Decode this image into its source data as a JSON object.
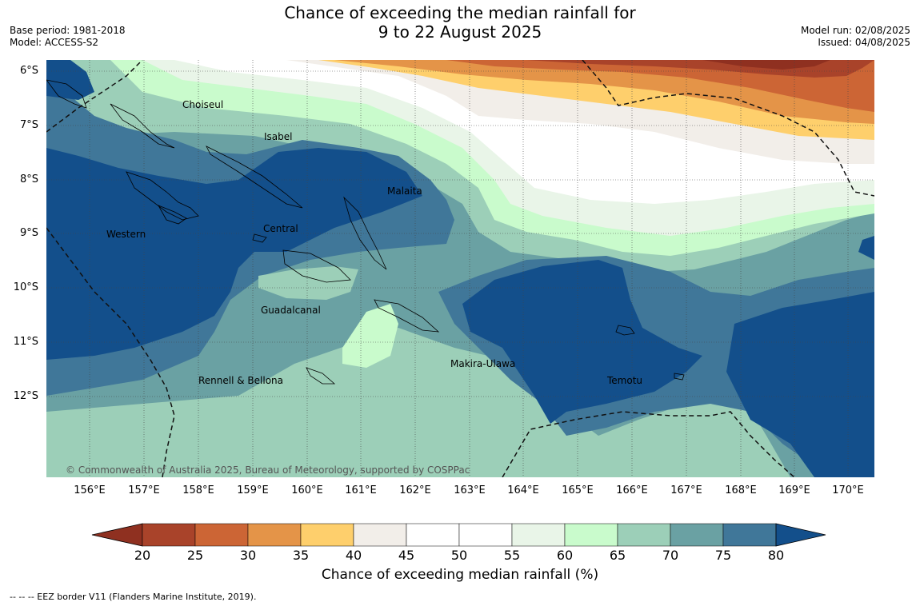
{
  "header": {
    "title_line1": "Chance of exceeding the median rainfall for",
    "title_line2": "9 to 22 August 2025",
    "base_period": "Base period: 1981-2018",
    "model": "Model: ACCESS-S2",
    "model_run": "Model run: 02/08/2025",
    "issued": "Issued: 04/08/2025"
  },
  "map": {
    "lat_labels": [
      "6°S",
      "7°S",
      "8°S",
      "9°S",
      "10°S",
      "11°S",
      "12°S"
    ],
    "lon_labels": [
      "156°E",
      "157°E",
      "158°E",
      "159°E",
      "160°E",
      "161°E",
      "162°E",
      "163°E",
      "164°E",
      "165°E",
      "166°E",
      "167°E",
      "168°E",
      "169°E",
      "170°E"
    ],
    "regions": {
      "choiseul": "Choiseul",
      "isabel": "Isabel",
      "malaita": "Malaita",
      "western": "Western",
      "central": "Central",
      "guadalcanal": "Guadalcanal",
      "makira": "Makira-Ulawa",
      "temotu": "Temotu",
      "rennell": "Rennell & Bellona"
    },
    "copyright": "© Commonwealth of Australia 2025, Bureau of Meteorology, supported by COSPPac"
  },
  "colorbar": {
    "label": "Chance of exceeding median rainfall (%)",
    "ticks": [
      "20",
      "25",
      "30",
      "35",
      "40",
      "45",
      "50",
      "55",
      "60",
      "65",
      "70",
      "75",
      "80"
    ],
    "colors": [
      "#a9432a",
      "#cc6535",
      "#e49448",
      "#fecf6c",
      "#f2eee9",
      "#ffffff",
      "#ffffff",
      "#e9f5e8",
      "#c9fbcc",
      "#9ccfb8",
      "#6aa1a3",
      "#407799"
    ],
    "low_extend_color": "#8f3020",
    "high_extend_color": "#134f8b"
  },
  "footer": {
    "eez_note": "--  --  -- EEZ border V11 (Flanders Marine Institute, 2019)."
  }
}
